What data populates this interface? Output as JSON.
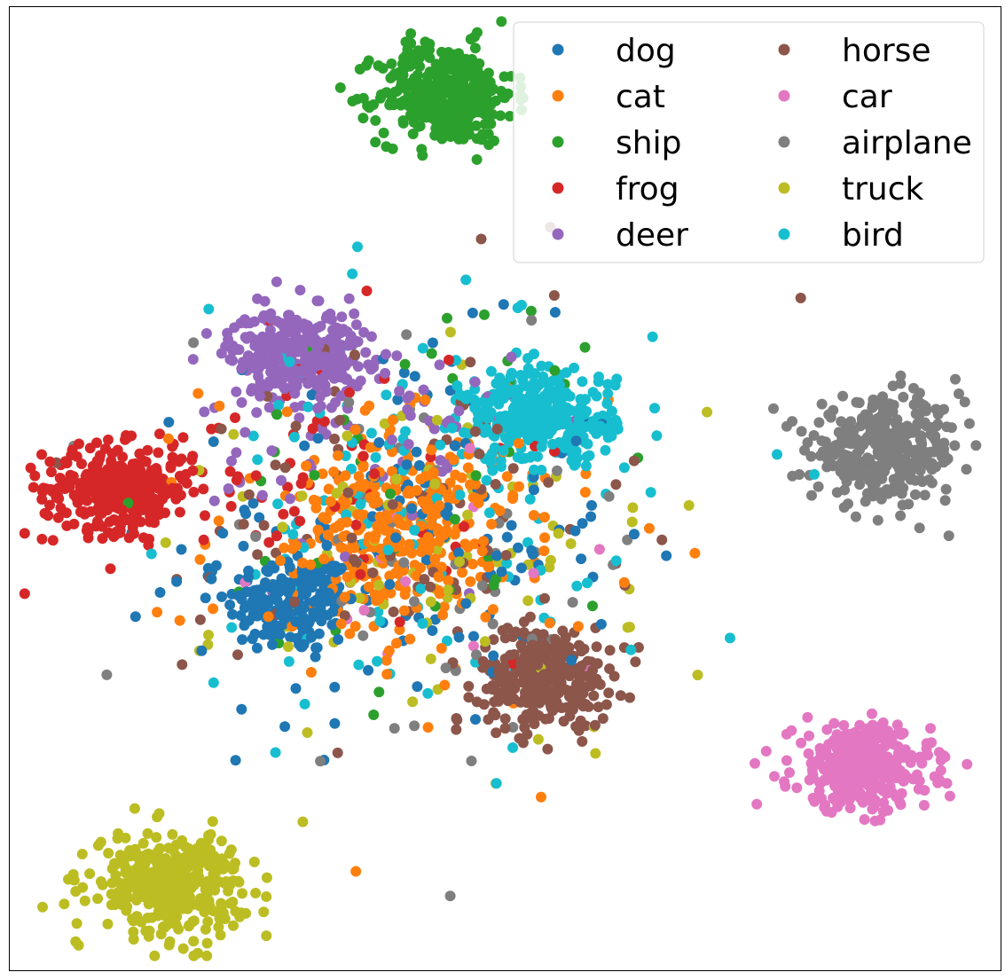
{
  "chart_data": {
    "type": "scatter",
    "title": "",
    "xlabel": "",
    "ylabel": "",
    "xlim": [
      0,
      100
    ],
    "ylim": [
      0,
      100
    ],
    "grid": false,
    "axes_ticks": false,
    "legend": {
      "placement": "top-right",
      "columns": 2
    },
    "series": [
      {
        "name": "dog",
        "color": "#1f77b4",
        "clusters": [
          {
            "cx": 28.5,
            "cy": 38.0,
            "sx": 3.3,
            "sy": 2.6,
            "n": 190
          },
          {
            "cx": 40.0,
            "cy": 45.0,
            "sx": 11.0,
            "sy": 10.0,
            "n": 150
          }
        ]
      },
      {
        "name": "cat",
        "color": "#ff7f0e",
        "clusters": [
          {
            "cx": 39.0,
            "cy": 45.5,
            "sx": 5.0,
            "sy": 4.2,
            "n": 260
          },
          {
            "cx": 40.0,
            "cy": 45.0,
            "sx": 10.0,
            "sy": 9.0,
            "n": 120
          }
        ]
      },
      {
        "name": "ship",
        "color": "#2ca02c",
        "clusters": [
          {
            "cx": 44.0,
            "cy": 91.0,
            "sx": 3.4,
            "sy": 2.6,
            "n": 380
          },
          {
            "cx": 44.0,
            "cy": 50.0,
            "sx": 12.0,
            "sy": 11.0,
            "n": 40
          }
        ]
      },
      {
        "name": "frog",
        "color": "#d62728",
        "clusters": [
          {
            "cx": 11.0,
            "cy": 50.0,
            "sx": 3.8,
            "sy": 2.2,
            "n": 320
          },
          {
            "cx": 30.0,
            "cy": 52.0,
            "sx": 10.0,
            "sy": 7.0,
            "n": 70
          }
        ]
      },
      {
        "name": "deer",
        "color": "#9467bd",
        "clusters": [
          {
            "cx": 29.0,
            "cy": 64.0,
            "sx": 3.5,
            "sy": 2.3,
            "n": 330
          },
          {
            "cx": 36.0,
            "cy": 55.0,
            "sx": 8.0,
            "sy": 6.0,
            "n": 70
          }
        ]
      },
      {
        "name": "horse",
        "color": "#8c564b",
        "clusters": [
          {
            "cx": 54.0,
            "cy": 30.5,
            "sx": 3.3,
            "sy": 2.6,
            "n": 330
          },
          {
            "cx": 40.0,
            "cy": 48.0,
            "sx": 11.0,
            "sy": 10.0,
            "n": 90
          }
        ]
      },
      {
        "name": "car",
        "color": "#e377c2",
        "clusters": [
          {
            "cx": 86.0,
            "cy": 21.0,
            "sx": 3.5,
            "sy": 2.2,
            "n": 360
          },
          {
            "cx": 50.0,
            "cy": 40.0,
            "sx": 12.0,
            "sy": 9.0,
            "n": 16
          }
        ]
      },
      {
        "name": "airplane",
        "color": "#7f7f7f",
        "clusters": [
          {
            "cx": 88.5,
            "cy": 54.0,
            "sx": 3.8,
            "sy": 2.6,
            "n": 360
          },
          {
            "cx": 42.0,
            "cy": 42.0,
            "sx": 12.0,
            "sy": 10.0,
            "n": 50
          }
        ]
      },
      {
        "name": "truck",
        "color": "#bcbd22",
        "clusters": [
          {
            "cx": 16.0,
            "cy": 9.0,
            "sx": 3.8,
            "sy": 2.6,
            "n": 360
          },
          {
            "cx": 45.0,
            "cy": 42.0,
            "sx": 12.0,
            "sy": 10.0,
            "n": 90
          }
        ]
      },
      {
        "name": "bird",
        "color": "#17becf",
        "clusters": [
          {
            "cx": 53.5,
            "cy": 57.5,
            "sx": 3.8,
            "sy": 2.4,
            "n": 300
          },
          {
            "cx": 42.0,
            "cy": 48.0,
            "sx": 12.0,
            "sy": 10.0,
            "n": 130
          }
        ]
      }
    ]
  }
}
